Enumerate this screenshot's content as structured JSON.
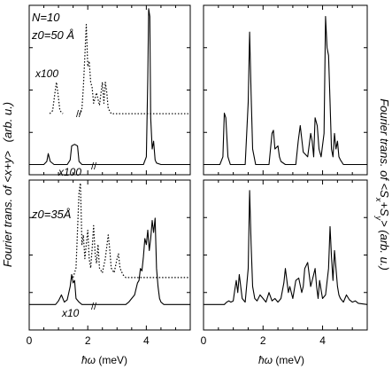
{
  "figure": {
    "left_ylabel_a": "Fourier trans. of <x+y>",
    "left_ylabel_b": "(arb. u.)",
    "right_ylabel_a": "Fourier trans. of <S",
    "right_ylabel_sub1": "x",
    "right_ylabel_mid": "+S",
    "right_ylabel_sub2": "y",
    "right_ylabel_b": "> (arb. u.)",
    "xlabel_hbar_omega": "ħω",
    "xlabel_unit": "(meV)"
  },
  "chart_data": [
    {
      "type": "line",
      "panel": "top-left",
      "annotations": [
        "N=10",
        "z0=50 Å",
        "x100",
        "x100",
        "//",
        "//"
      ],
      "xlim": [
        0,
        5.5
      ],
      "xticks": [
        0,
        2,
        4
      ],
      "series": [
        {
          "style": "solid",
          "x": [
            0,
            0.5,
            0.6,
            0.65,
            0.72,
            0.85,
            1.3,
            1.4,
            1.45,
            1.55,
            1.65,
            1.7,
            1.8,
            3.9,
            4.0,
            4.05,
            4.08,
            4.12,
            4.15,
            4.2,
            4.25,
            4.3,
            4.35,
            4.5,
            5.5
          ],
          "y": [
            0,
            0,
            0.02,
            0.07,
            0.02,
            0,
            0,
            0.03,
            0.12,
            0.13,
            0.12,
            0.02,
            0,
            0,
            0.05,
            0.55,
            1.0,
            0.95,
            0.3,
            0.1,
            0.15,
            0.03,
            0.01,
            0,
            0
          ]
        },
        {
          "style": "dotted",
          "offset_label": "x100",
          "x": [
            1.7,
            1.75,
            1.8,
            1.85,
            1.9,
            1.95,
            2.0,
            2.05,
            2.1,
            2.15,
            2.2,
            2.3,
            2.4,
            2.5,
            2.55,
            2.6,
            2.65,
            2.7,
            2.8,
            2.9,
            3.0,
            5.5
          ],
          "y": [
            0,
            0,
            0.05,
            0.25,
            0.55,
            0.85,
            0.45,
            0.5,
            0.3,
            0.25,
            0.1,
            0.2,
            0.08,
            0.3,
            0.1,
            0.3,
            0.2,
            0.05,
            0,
            0,
            0,
            0
          ]
        },
        {
          "style": "dotted",
          "x": [
            0.7,
            0.8,
            0.88,
            0.93,
            0.98,
            1.05,
            1.15
          ],
          "y": [
            0,
            0.03,
            0.2,
            0.3,
            0.2,
            0.03,
            0
          ]
        }
      ]
    },
    {
      "type": "line",
      "panel": "top-right",
      "xlim": [
        0,
        5.5
      ],
      "xticks": [
        0,
        2,
        4
      ],
      "series": [
        {
          "style": "solid",
          "x": [
            0,
            0.55,
            0.65,
            0.7,
            0.75,
            0.82,
            0.9,
            1.4,
            1.5,
            1.55,
            1.6,
            1.65,
            1.75,
            2.2,
            2.3,
            2.35,
            2.4,
            2.5,
            2.55,
            2.6,
            2.75,
            3.1,
            3.18,
            3.25,
            3.35,
            3.5,
            3.6,
            3.65,
            3.7,
            3.75,
            3.82,
            3.88,
            3.95,
            4.05,
            4.1,
            4.15,
            4.2,
            4.25,
            4.3,
            4.35,
            4.4,
            4.45,
            4.5,
            4.55,
            4.6,
            4.7,
            5.0,
            5.5
          ],
          "y": [
            0,
            0,
            0.05,
            0.33,
            0.3,
            0.05,
            0,
            0,
            0.4,
            0.85,
            0.45,
            0.1,
            0,
            0,
            0.2,
            0.22,
            0.1,
            0.12,
            0.05,
            0.02,
            0,
            0,
            0.15,
            0.25,
            0.08,
            0.05,
            0.2,
            0.15,
            0.05,
            0.3,
            0.25,
            0.1,
            0.05,
            0.2,
            0.95,
            0.75,
            0.7,
            0.4,
            0.1,
            0.05,
            0.2,
            0.1,
            0.15,
            0.05,
            0.03,
            0,
            0,
            0
          ]
        }
      ]
    },
    {
      "type": "line",
      "panel": "bottom-left",
      "annotations": [
        "z0=35Å",
        "x10",
        "//"
      ],
      "xlim": [
        0,
        5.5
      ],
      "xticks": [
        0,
        2,
        4
      ],
      "series": [
        {
          "style": "solid",
          "x": [
            0,
            0.9,
            1.0,
            1.1,
            1.2,
            1.3,
            1.4,
            1.45,
            1.5,
            1.55,
            1.6,
            1.7,
            1.8,
            3.3,
            3.4,
            3.5,
            3.6,
            3.7,
            3.75,
            3.8,
            3.85,
            3.9,
            3.95,
            4.0,
            4.05,
            4.1,
            4.15,
            4.2,
            4.25,
            4.3,
            4.35,
            4.4,
            4.45,
            4.5,
            4.6,
            5.5
          ],
          "y": [
            0,
            0,
            0.03,
            0.08,
            0.02,
            0.04,
            0.15,
            0.25,
            0.18,
            0.2,
            0.05,
            0.02,
            0,
            0,
            0.02,
            0.05,
            0.08,
            0.18,
            0.2,
            0.3,
            0.28,
            0.4,
            0.55,
            0.5,
            0.62,
            0.45,
            0.55,
            0.7,
            0.6,
            0.72,
            0.3,
            0.15,
            0.05,
            0.02,
            0,
            0
          ]
        },
        {
          "style": "dotted",
          "offset_label": "x10",
          "x": [
            1.5,
            1.6,
            1.65,
            1.7,
            1.75,
            1.8,
            1.85,
            1.9,
            1.95,
            2.0,
            2.05,
            2.1,
            2.15,
            2.2,
            2.25,
            2.3,
            2.35,
            2.4,
            2.5,
            2.6,
            2.7,
            2.75,
            2.8,
            2.9,
            3.0,
            3.05,
            3.1,
            3.2,
            3.3,
            5.5
          ],
          "y": [
            0,
            0.1,
            0.5,
            0.9,
            1.0,
            0.35,
            0.45,
            0.2,
            0.35,
            0.5,
            0.2,
            0.1,
            0.3,
            0.55,
            0.25,
            0.15,
            0.35,
            0.1,
            0.05,
            0.2,
            0.45,
            0.3,
            0.1,
            0.05,
            0.2,
            0.25,
            0.1,
            0.03,
            0,
            0
          ]
        }
      ]
    },
    {
      "type": "line",
      "panel": "bottom-right",
      "xlim": [
        0,
        5.5
      ],
      "xticks": [
        0,
        2,
        4
      ],
      "series": [
        {
          "style": "solid",
          "x": [
            0,
            0.7,
            0.78,
            0.85,
            0.92,
            1.0,
            1.05,
            1.1,
            1.15,
            1.2,
            1.3,
            1.4,
            1.5,
            1.55,
            1.6,
            1.65,
            1.72,
            1.8,
            1.9,
            2.0,
            2.1,
            2.2,
            2.3,
            2.4,
            2.5,
            2.6,
            2.7,
            2.75,
            2.8,
            2.85,
            2.9,
            3.0,
            3.1,
            3.2,
            3.3,
            3.35,
            3.4,
            3.5,
            3.6,
            3.7,
            3.75,
            3.8,
            3.85,
            3.9,
            3.95,
            4.0,
            4.1,
            4.2,
            4.25,
            4.3,
            4.35,
            4.4,
            4.45,
            4.5,
            4.55,
            4.6,
            4.7,
            4.8,
            4.9,
            5.0,
            5.1,
            5.2,
            5.5
          ],
          "y": [
            0,
            0,
            0.02,
            0.03,
            0.02,
            0.03,
            0.12,
            0.2,
            0.1,
            0.25,
            0.05,
            0.02,
            0.3,
            0.95,
            0.5,
            0.15,
            0.05,
            0.03,
            0.08,
            0.05,
            0.02,
            0.1,
            0.03,
            0.05,
            0.02,
            0.05,
            0.18,
            0.3,
            0.2,
            0.1,
            0.15,
            0.05,
            0.2,
            0.22,
            0.1,
            0.15,
            0.3,
            0.35,
            0.15,
            0.25,
            0.3,
            0.15,
            0.05,
            0.2,
            0.12,
            0.05,
            0.08,
            0.3,
            0.65,
            0.4,
            0.2,
            0.45,
            0.3,
            0.15,
            0.08,
            0.05,
            0.02,
            0.08,
            0.04,
            0.02,
            0.03,
            0.01,
            0
          ]
        }
      ]
    }
  ]
}
